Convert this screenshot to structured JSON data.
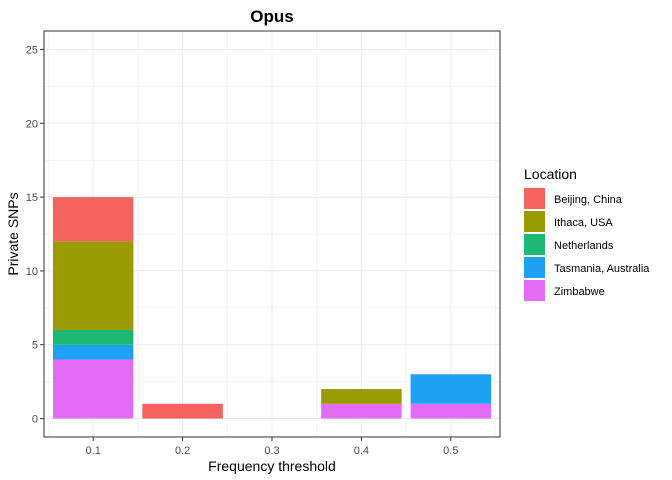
{
  "chart_data": {
    "type": "bar",
    "stacked": true,
    "title": "Opus",
    "xlabel": "Frequency threshold",
    "ylabel": "Private SNPs",
    "categories": [
      "0.1",
      "0.2",
      "0.3",
      "0.4",
      "0.5"
    ],
    "x_ticks": [
      "0.1",
      "0.2",
      "0.3",
      "0.4",
      "0.5"
    ],
    "y_ticks": [
      "0",
      "5",
      "10",
      "15",
      "20",
      "25"
    ],
    "ylim": [
      -1.25,
      26.25
    ],
    "grid": true,
    "legend_position": "right",
    "legend_title": "Location",
    "series": [
      {
        "name": "Zimbabwe",
        "color": "#E36CF5",
        "values": [
          4,
          0,
          0,
          1,
          1
        ]
      },
      {
        "name": "Tasmania, Australia",
        "color": "#1EA1F0",
        "values": [
          1,
          0,
          0,
          0,
          2
        ]
      },
      {
        "name": "Netherlands",
        "color": "#1DB974",
        "values": [
          1,
          0,
          0,
          0,
          0
        ]
      },
      {
        "name": "Ithaca, USA",
        "color": "#999B00",
        "values": [
          6,
          0,
          0,
          1,
          0
        ]
      },
      {
        "name": "Beijing, China",
        "color": "#F5635F",
        "values": [
          3,
          1,
          0,
          0,
          0
        ]
      }
    ],
    "legend_order": [
      "Beijing, China",
      "Ithaca, USA",
      "Netherlands",
      "Tasmania, Australia",
      "Zimbabwe"
    ]
  }
}
